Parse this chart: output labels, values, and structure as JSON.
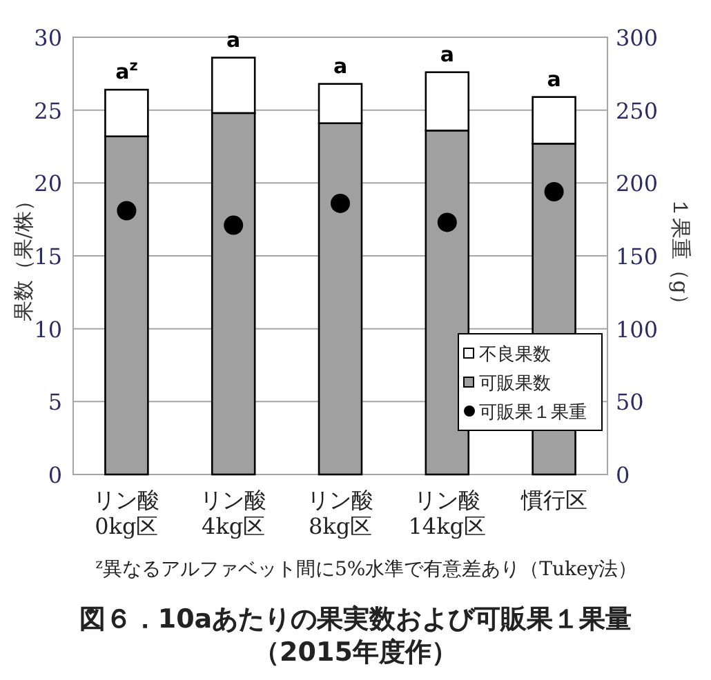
{
  "chart_data": {
    "type": "bar",
    "title": "図６．10aあたりの果実数および可販果１果量",
    "subtitle": "（2015年度作）",
    "ylabel": "果数（果/株）",
    "y2label": "１果重（g）",
    "categories": [
      "リン酸\n0kg区",
      "リン酸\n4kg区",
      "リン酸\n8kg区",
      "リン酸\n14kg区",
      "慣行区"
    ],
    "stacked": true,
    "series": [
      {
        "name": "可販果数",
        "color": "#a0a0a0",
        "values": [
          23.2,
          24.8,
          24.1,
          23.6,
          22.7
        ]
      },
      {
        "name": "不良果数",
        "color": "#ffffff",
        "values": [
          3.2,
          3.8,
          2.7,
          4.0,
          3.2
        ]
      },
      {
        "name": "可販果１果重",
        "type": "scatter",
        "axis": "y2",
        "color": "#000000",
        "x": [
          "リン酸\n0kg区",
          "リン酸\n4kg区",
          "リン酸\n8kg区",
          "リン酸\n14kg区",
          "慣行区"
        ],
        "values": [
          181,
          171,
          186,
          173,
          194
        ]
      }
    ],
    "ylim": [
      0,
      30
    ],
    "yticks": [
      0,
      5,
      10,
      15,
      20,
      25,
      30
    ],
    "y2lim": [
      0,
      300
    ],
    "y2ticks": [
      0,
      50,
      100,
      150,
      200,
      250,
      300
    ],
    "grid": "y",
    "legend": "bottom right",
    "marker": "circle",
    "annotations": [
      {
        "text": "a$^{z}$",
        "x": "リン酸\n0kg区",
        "y": 26.4
      },
      {
        "text": "a",
        "x": "リン酸\n4kg区",
        "y": 28.6
      },
      {
        "text": "a",
        "x": "リン酸\n8kg区",
        "y": 26.8
      },
      {
        "text": "a",
        "x": "リン酸\n14kg区",
        "y": 27.6
      },
      {
        "text": "a",
        "x": "慣行区",
        "y": 25.9
      },
      "$^{z}$異なるアルファベット間に5%水準で有意差あり（Tukey法）"
    ]
  }
}
